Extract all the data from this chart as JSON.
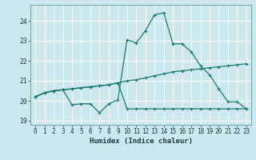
{
  "xlabel": "Humidex (Indice chaleur)",
  "background_color": "#cce8ee",
  "grid_color": "#ffffff",
  "line_color": "#1a7a6e",
  "xlim": [
    -0.5,
    23.5
  ],
  "ylim": [
    18.8,
    24.8
  ],
  "yticks": [
    19,
    20,
    21,
    22,
    23,
    24
  ],
  "xticks": [
    0,
    1,
    2,
    3,
    4,
    5,
    6,
    7,
    8,
    9,
    10,
    11,
    12,
    13,
    14,
    15,
    16,
    17,
    18,
    19,
    20,
    21,
    22,
    23
  ],
  "line1_x": [
    0,
    1,
    2,
    3,
    4,
    5,
    6,
    7,
    8,
    9,
    10,
    11,
    12,
    13,
    14,
    15,
    16,
    17,
    18,
    19,
    20,
    21,
    22,
    23
  ],
  "line1_y": [
    20.2,
    20.4,
    20.5,
    20.55,
    20.6,
    20.65,
    20.7,
    20.75,
    20.8,
    20.9,
    21.0,
    21.05,
    21.15,
    21.25,
    21.35,
    21.45,
    21.5,
    21.55,
    21.6,
    21.65,
    21.7,
    21.75,
    21.8,
    21.85
  ],
  "line2_x": [
    0,
    1,
    2,
    3,
    4,
    5,
    6,
    7,
    8,
    9,
    10,
    11,
    12,
    13,
    14,
    15,
    16,
    17,
    18,
    19,
    20,
    21,
    22,
    23
  ],
  "line2_y": [
    20.2,
    20.4,
    20.5,
    20.55,
    20.6,
    20.65,
    20.7,
    20.75,
    20.8,
    20.9,
    19.6,
    19.6,
    19.6,
    19.6,
    19.6,
    19.6,
    19.6,
    19.6,
    19.6,
    19.6,
    19.6,
    19.6,
    19.6,
    19.6
  ],
  "line3_x": [
    0,
    1,
    2,
    3,
    4,
    5,
    6,
    7,
    8,
    9,
    10,
    11,
    12,
    13,
    14,
    15,
    16,
    17,
    18,
    19,
    20,
    21,
    22,
    23
  ],
  "line3_y": [
    20.2,
    20.4,
    20.5,
    20.55,
    19.8,
    19.85,
    19.85,
    19.4,
    19.85,
    20.05,
    23.05,
    22.9,
    23.5,
    24.3,
    24.4,
    22.85,
    22.85,
    22.45,
    21.75,
    21.3,
    20.6,
    19.95,
    19.95,
    19.6
  ],
  "xlabel_fontsize": 6.5,
  "tick_fontsize": 5.5
}
